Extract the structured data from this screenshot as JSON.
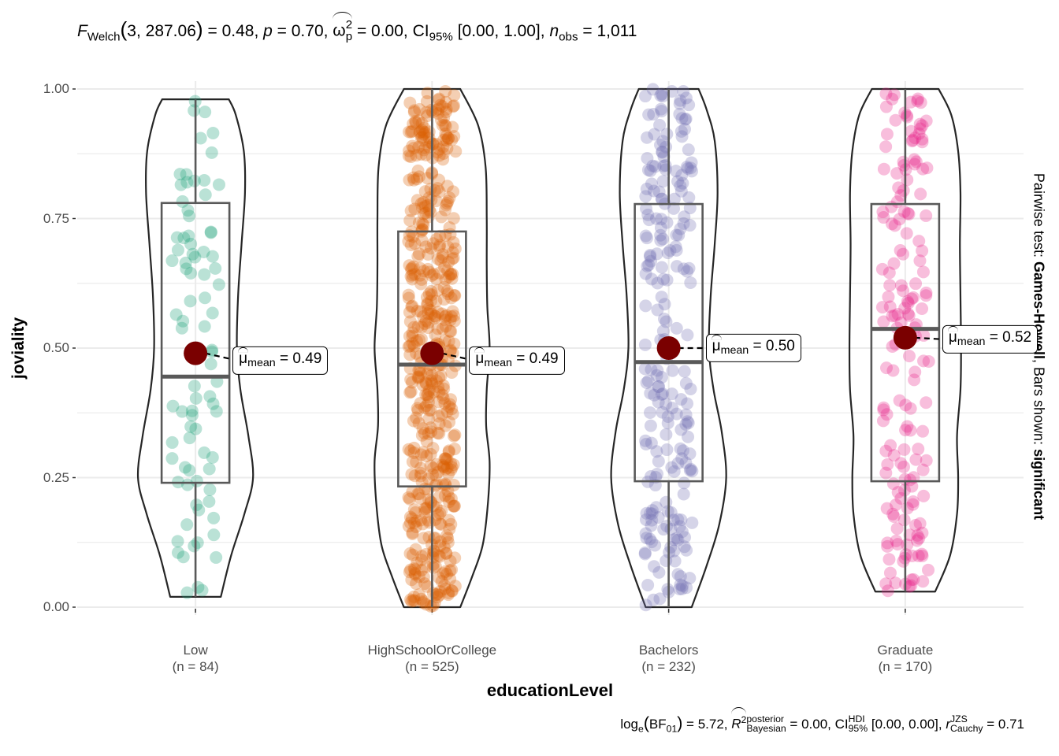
{
  "chart_data": {
    "type": "violin-box-jitter",
    "title_parts": {
      "stat_symbol": "F",
      "stat_sub": "Welch",
      "df": "3, 287.06",
      "stat_value": "0.48",
      "p_label": "p",
      "p_value": "0.70",
      "effsize_symbol": "ω",
      "effsize_sup": "2",
      "effsize_sub": "p",
      "effsize_value": "0.00",
      "ci_label": "CI",
      "ci_sub": "95%",
      "ci_value": "[0.00, 1.00]",
      "n_label": "n",
      "n_sub": "obs",
      "n_value": "1,011"
    },
    "caption_parts": {
      "log": "log",
      "log_sub": "e",
      "bf": "BF",
      "bf_sub": "01",
      "bf_value": "5.72",
      "r_symbol": "R",
      "r_sup": "2",
      "r_sup2": "posterior",
      "r_sub": "Bayesian",
      "r_value": "0.00",
      "ci": "CI",
      "ci_sup": "HDI",
      "ci_sub": "95%",
      "ci_value": "[0.00, 0.00]",
      "rc_symbol": "r",
      "rc_sup": "JZS",
      "rc_sub": "Cauchy",
      "rc_value": "0.71"
    },
    "side_text": {
      "prefix": "Pairwise test: ",
      "test": "Games-Howell",
      "middle": ", Bars shown: ",
      "shown": "significant"
    },
    "xlabel": "educationLevel",
    "ylabel": "joviality",
    "ylim": [
      0,
      1
    ],
    "yticks": [
      "0.00",
      "0.25",
      "0.50",
      "0.75",
      "1.00"
    ],
    "ytick_values": [
      0,
      0.25,
      0.5,
      0.75,
      1.0
    ],
    "grid": true,
    "mean_symbol": "μ",
    "mean_sub": "mean",
    "groups": [
      {
        "name": "Low",
        "n_label": "(n = 84)",
        "n": 84,
        "color": "#1B9E77",
        "min": 0.02,
        "q1": 0.24,
        "median": 0.445,
        "q3": 0.78,
        "max": 0.98,
        "mean": 0.49,
        "mean_label": "0.49",
        "density": [
          [
            0.02,
            0.44
          ],
          [
            0.1,
            0.62
          ],
          [
            0.18,
            0.85
          ],
          [
            0.25,
            1.0
          ],
          [
            0.33,
            0.92
          ],
          [
            0.42,
            0.78
          ],
          [
            0.5,
            0.72
          ],
          [
            0.6,
            0.74
          ],
          [
            0.7,
            0.8
          ],
          [
            0.8,
            0.86
          ],
          [
            0.88,
            0.84
          ],
          [
            0.95,
            0.7
          ],
          [
            0.98,
            0.58
          ]
        ]
      },
      {
        "name": "HighSchoolOrCollege",
        "n_label": "(n = 525)",
        "n": 525,
        "color": "#D95F02",
        "min": 0.0,
        "q1": 0.233,
        "median": 0.468,
        "q3": 0.725,
        "max": 1.0,
        "mean": 0.49,
        "mean_label": "0.49",
        "density": [
          [
            0.0,
            0.49
          ],
          [
            0.06,
            0.7
          ],
          [
            0.12,
            0.88
          ],
          [
            0.2,
            0.97
          ],
          [
            0.28,
            1.0
          ],
          [
            0.35,
            0.94
          ],
          [
            0.42,
            0.95
          ],
          [
            0.5,
            1.0
          ],
          [
            0.58,
            0.96
          ],
          [
            0.66,
            0.95
          ],
          [
            0.75,
            0.95
          ],
          [
            0.85,
            0.93
          ],
          [
            0.93,
            0.8
          ],
          [
            1.0,
            0.49
          ]
        ]
      },
      {
        "name": "Bachelors",
        "n_label": "(n = 232)",
        "n": 232,
        "color": "#7570B3",
        "min": 0.0,
        "q1": 0.243,
        "median": 0.473,
        "q3": 0.778,
        "max": 1.0,
        "mean": 0.5,
        "mean_label": "0.50",
        "density": [
          [
            0.0,
            0.4
          ],
          [
            0.08,
            0.66
          ],
          [
            0.16,
            0.88
          ],
          [
            0.25,
            1.0
          ],
          [
            0.34,
            0.92
          ],
          [
            0.42,
            0.78
          ],
          [
            0.5,
            0.7
          ],
          [
            0.6,
            0.73
          ],
          [
            0.7,
            0.8
          ],
          [
            0.8,
            0.85
          ],
          [
            0.9,
            0.8
          ],
          [
            0.96,
            0.66
          ],
          [
            1.0,
            0.52
          ]
        ]
      },
      {
        "name": "Graduate",
        "n_label": "(n = 170)",
        "n": 170,
        "color": "#E7298A",
        "min": 0.03,
        "q1": 0.243,
        "median": 0.537,
        "q3": 0.778,
        "max": 1.0,
        "mean": 0.52,
        "mean_label": "0.52",
        "density": [
          [
            0.03,
            0.52
          ],
          [
            0.1,
            0.78
          ],
          [
            0.18,
            0.9
          ],
          [
            0.25,
            0.92
          ],
          [
            0.33,
            0.9
          ],
          [
            0.42,
            0.96
          ],
          [
            0.5,
            0.97
          ],
          [
            0.6,
            0.96
          ],
          [
            0.7,
            0.95
          ],
          [
            0.8,
            0.96
          ],
          [
            0.88,
            0.92
          ],
          [
            0.95,
            0.8
          ],
          [
            1.0,
            0.58
          ]
        ]
      }
    ]
  }
}
